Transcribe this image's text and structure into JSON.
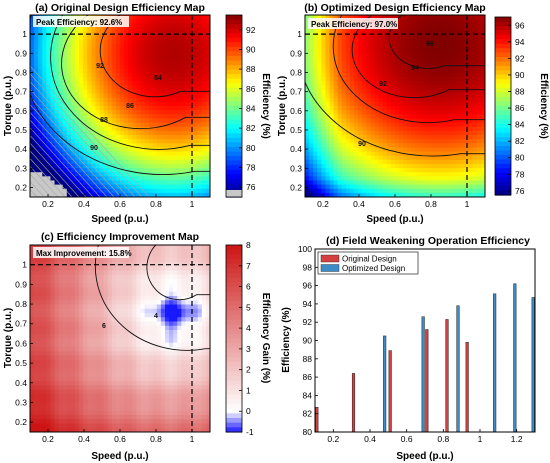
{
  "chart_data": [
    {
      "type": "heatmap",
      "title": "(a) Original Design Efficiency Map",
      "xlabel": "Speed (p.u.)",
      "ylabel": "Torque (p.u.)",
      "colorbar_label": "Efficiency (%)",
      "xlim": [
        0.1,
        1.1
      ],
      "ylim": [
        0.15,
        1.1
      ],
      "xticks": [
        "0.2",
        "0.4",
        "0.6",
        "0.8",
        "1"
      ],
      "yticks": [
        "0.2",
        "0.3",
        "0.4",
        "0.5",
        "0.6",
        "0.7",
        "0.8",
        "0.9",
        "1"
      ],
      "colorbar_range": [
        75,
        93.5
      ],
      "colorbar_ticks": [
        "76",
        "78",
        "80",
        "82",
        "84",
        "86",
        "88",
        "90",
        "92"
      ],
      "peak_location": [
        0.9,
        0.9
      ],
      "contour_labels": [
        "84",
        "86",
        "88",
        "90",
        "92"
      ],
      "annotation": "Peak Efficiency: 92.6%",
      "peak_value": 92.6,
      "rated_point": [
        1.0,
        1.0
      ],
      "colormap": "jet",
      "infeasible_region_color": "#c8c8c8"
    },
    {
      "type": "heatmap",
      "title": "(b) Optimized Design Efficiency Map",
      "xlabel": "Speed (p.u.)",
      "ylabel": "Torque (p.u.)",
      "colorbar_label": "Efficiency (%)",
      "xlim": [
        0.1,
        1.1
      ],
      "ylim": [
        0.15,
        1.1
      ],
      "xticks": [
        "0.2",
        "0.4",
        "0.6",
        "0.8",
        "1"
      ],
      "yticks": [
        "0.2",
        "0.3",
        "0.4",
        "0.5",
        "0.6",
        "0.7",
        "0.8",
        "0.9",
        "1"
      ],
      "colorbar_range": [
        75.5,
        97
      ],
      "colorbar_ticks": [
        "76",
        "78",
        "80",
        "82",
        "84",
        "86",
        "88",
        "90",
        "92",
        "94",
        "96"
      ],
      "peak_location": [
        0.85,
        0.95
      ],
      "contour_labels": [
        "90",
        "92",
        "94",
        "96"
      ],
      "annotation": "Peak Efficiency: 97.0%",
      "peak_value": 97.0,
      "rated_point": [
        1.0,
        1.0
      ],
      "colormap": "jet"
    },
    {
      "type": "heatmap",
      "title": "(c) Efficiency Improvement Map",
      "xlabel": "Speed (p.u.)",
      "ylabel": "Torque (p.u.)",
      "colorbar_label": "Efficiency Gain (%)",
      "xlim": [
        0.1,
        1.1
      ],
      "ylim": [
        0.15,
        1.1
      ],
      "xticks": [
        "0.2",
        "0.4",
        "0.6",
        "0.8",
        "1"
      ],
      "yticks": [
        "0.2",
        "0.3",
        "0.4",
        "0.5",
        "0.6",
        "0.7",
        "0.8",
        "0.9",
        "1"
      ],
      "colorbar_range": [
        -1,
        8
      ],
      "colorbar_ticks": [
        "-1",
        "0",
        "1",
        "2",
        "3",
        "4",
        "5",
        "6",
        "7",
        "8"
      ],
      "contour_labels": [
        "4",
        "6"
      ],
      "annotation": "Max Improvement: 15.8%",
      "max_value": 15.8,
      "rated_point": [
        1.0,
        1.0
      ],
      "colormap": "blue-white-red"
    },
    {
      "type": "bar",
      "title": "(d) Field Weakening Operation Efficiency",
      "xlabel": "Speed (p.u.)",
      "ylabel": "Efficiency (%)",
      "xlim": [
        0.1,
        1.3
      ],
      "ylim": [
        80,
        100
      ],
      "xticks": [
        "0.2",
        "0.4",
        "0.6",
        "0.8",
        "1",
        "1.2"
      ],
      "yticks": [
        "80",
        "82",
        "84",
        "86",
        "88",
        "90",
        "92",
        "94",
        "96",
        "98",
        "100"
      ],
      "legend_position": "top-left",
      "series": [
        {
          "name": "Original Design",
          "color": "#d44040",
          "x": [
            0.11,
            0.31,
            0.51,
            0.71,
            0.82,
            0.93
          ],
          "values": [
            82.7,
            86.4,
            88.9,
            91.2,
            92.3,
            89.8
          ]
        },
        {
          "name": "Optimized Design",
          "color": "#3c8cc8",
          "x": [
            0.48,
            0.69,
            0.88,
            1.08,
            1.19,
            1.29
          ],
          "values": [
            90.5,
            92.6,
            93.8,
            95.1,
            96.2,
            94.7
          ]
        }
      ]
    }
  ]
}
